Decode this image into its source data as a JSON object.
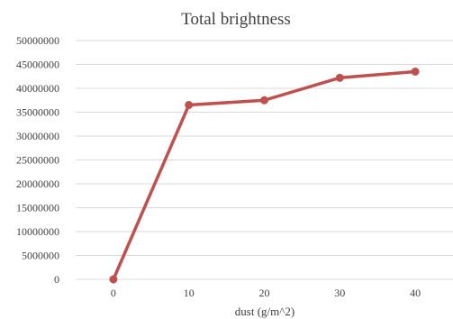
{
  "chart_data": {
    "type": "line",
    "title": "Total brightness",
    "xlabel": "dust (g/m^2)",
    "ylabel": "",
    "x": [
      0,
      10,
      20,
      30,
      40
    ],
    "x_tick_labels": [
      "0",
      "10",
      "20",
      "30",
      "40"
    ],
    "y_tick_labels": [
      "0",
      "5000000",
      "10000000",
      "15000000",
      "20000000",
      "25000000",
      "30000000",
      "35000000",
      "40000000",
      "45000000",
      "50000000"
    ],
    "ylim": [
      0,
      50000000
    ],
    "grid": true,
    "legend": "none",
    "series": [
      {
        "values": [
          0,
          36500000,
          37500000,
          42200000,
          43500000
        ],
        "color": "#c0504d"
      }
    ]
  }
}
